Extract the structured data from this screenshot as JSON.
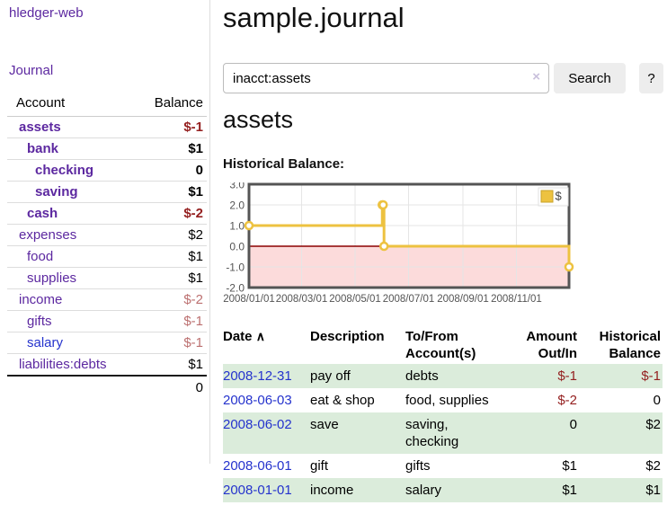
{
  "colors": {
    "link_purple": "#5c28a0",
    "link_blue": "#2533cd",
    "negative_strong": "#941f1f",
    "negative_soft": "#bc7070",
    "row_stripe_green": "#dbecdb",
    "chart_gold": "#edc240",
    "chart_negative_region": "#fcdbdb",
    "chart_zero_line": "#8b0000"
  },
  "sidebar": {
    "brand": "hledger-web",
    "nav_journal": "Journal",
    "table": {
      "headers": {
        "account": "Account",
        "balance": "Balance"
      },
      "rows": [
        {
          "account": "assets",
          "balance": "$-1",
          "indent": 1,
          "bold": true,
          "balance_style": "neg-strong"
        },
        {
          "account": "bank",
          "balance": "$1",
          "indent": 2,
          "bold": true,
          "balance_style": "pos"
        },
        {
          "account": "checking",
          "balance": "0",
          "indent": 3,
          "bold": true,
          "balance_style": "pos"
        },
        {
          "account": "saving",
          "balance": "$1",
          "indent": 3,
          "bold": true,
          "balance_style": "pos"
        },
        {
          "account": "cash",
          "balance": "$-2",
          "indent": 2,
          "bold": true,
          "balance_style": "neg-strong"
        },
        {
          "account": "expenses",
          "balance": "$2",
          "indent": 1,
          "bold": false,
          "balance_style": "pos"
        },
        {
          "account": "food",
          "balance": "$1",
          "indent": 2,
          "bold": false,
          "balance_style": "pos"
        },
        {
          "account": "supplies",
          "balance": "$1",
          "indent": 2,
          "bold": false,
          "balance_style": "pos"
        },
        {
          "account": "income",
          "balance": "$-2",
          "indent": 1,
          "bold": false,
          "balance_style": "neg-soft"
        },
        {
          "account": "gifts",
          "balance": "$-1",
          "indent": 2,
          "bold": false,
          "balance_style": "neg-soft"
        },
        {
          "account": "salary",
          "balance": "$-1",
          "indent": 2,
          "bold": false,
          "balance_style": "neg-soft",
          "link": "blue"
        },
        {
          "account": "liabilities:debts",
          "balance": "$1",
          "indent": 1,
          "bold": false,
          "balance_style": "pos"
        }
      ],
      "total": "0"
    }
  },
  "header": {
    "title": "sample.journal"
  },
  "search": {
    "value": "inacct:assets",
    "clear_icon": "×",
    "button_label": "Search",
    "help_label": "?"
  },
  "account_page": {
    "heading": "assets",
    "chart_title": "Historical Balance:"
  },
  "chart_data": {
    "type": "line",
    "step": true,
    "title": "Historical Balance",
    "series": [
      {
        "name": "$",
        "color": "#edc240",
        "points": [
          [
            "2008-01-01",
            1
          ],
          [
            "2008-06-01",
            2
          ],
          [
            "2008-06-02",
            2
          ],
          [
            "2008-06-03",
            0
          ],
          [
            "2008-12-31",
            -1
          ]
        ]
      }
    ],
    "x_range": [
      "2008-01-01",
      "2008-12-31"
    ],
    "ylim": [
      -2,
      3
    ],
    "y_ticks": [
      3.0,
      2.0,
      1.0,
      0.0,
      -1.0,
      -2.0
    ],
    "x_ticks": [
      "2008/01/01",
      "2008/03/01",
      "2008/05/01",
      "2008/07/01",
      "2008/09/01",
      "2008/11/01"
    ],
    "grid": true,
    "legend": {
      "label": "$",
      "position": "top-right"
    },
    "negative_region_color": "#fcdbdb",
    "zero_line_color": "#8b0000"
  },
  "register": {
    "headers": {
      "date": "Date",
      "description": "Description",
      "accounts": "To/From\nAccount(s)",
      "amount": "Amount\nOut/In",
      "balance": "Historical\nBalance"
    },
    "sort_icon": "∧",
    "rows": [
      {
        "date": "2008-12-31",
        "description": "pay off",
        "accounts": "debts",
        "amount": "$-1",
        "amount_neg": true,
        "balance": "$-1",
        "balance_neg": true
      },
      {
        "date": "2008-06-03",
        "description": "eat & shop",
        "accounts": "food, supplies",
        "amount": "$-2",
        "amount_neg": true,
        "balance": "0",
        "balance_neg": false
      },
      {
        "date": "2008-06-02",
        "description": "save",
        "accounts": "saving,\nchecking",
        "amount": "0",
        "amount_neg": false,
        "balance": "$2",
        "balance_neg": false
      },
      {
        "date": "2008-06-01",
        "description": "gift",
        "accounts": "gifts",
        "amount": "$1",
        "amount_neg": false,
        "balance": "$2",
        "balance_neg": false
      },
      {
        "date": "2008-01-01",
        "description": "income",
        "accounts": "salary",
        "amount": "$1",
        "amount_neg": false,
        "balance": "$1",
        "balance_neg": false
      }
    ]
  }
}
